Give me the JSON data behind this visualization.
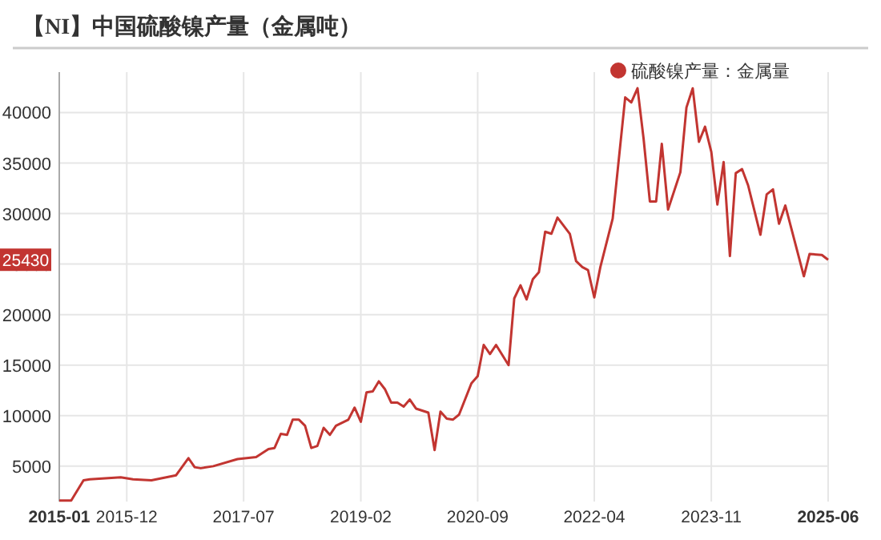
{
  "chart_data": {
    "type": "line",
    "title": "【NI】中国硫酸镍产量（金属吨）",
    "x": [
      "2015-01",
      "2015-03",
      "2015-05",
      "2015-06",
      "2015-11",
      "2016-01",
      "2016-04",
      "2016-08",
      "2016-10",
      "2016-11",
      "2016-12",
      "2017-02",
      "2017-06",
      "2017-09",
      "2017-11",
      "2017-12",
      "2018-01",
      "2018-02",
      "2018-03",
      "2018-04",
      "2018-05",
      "2018-06",
      "2018-07",
      "2018-08",
      "2018-09",
      "2018-10",
      "2018-12",
      "2019-01",
      "2019-02",
      "2019-03",
      "2019-04",
      "2019-05",
      "2019-06",
      "2019-07",
      "2019-08",
      "2019-09",
      "2019-10",
      "2019-11",
      "2020-01",
      "2020-02",
      "2020-03",
      "2020-04",
      "2020-05",
      "2020-06",
      "2020-08",
      "2020-09",
      "2020-10",
      "2020-11",
      "2020-12",
      "2021-02",
      "2021-03",
      "2021-04",
      "2021-05",
      "2021-06",
      "2021-07",
      "2021-08",
      "2021-09",
      "2021-10",
      "2021-12",
      "2022-01",
      "2022-02",
      "2022-03",
      "2022-04",
      "2022-05",
      "2022-07",
      "2022-09",
      "2022-10",
      "2022-11",
      "2022-12",
      "2023-01",
      "2023-02",
      "2023-03",
      "2023-04",
      "2023-06",
      "2023-07",
      "2023-08",
      "2023-09",
      "2023-10",
      "2023-11",
      "2023-12",
      "2024-01",
      "2024-02",
      "2024-03",
      "2024-04",
      "2024-05",
      "2024-07",
      "2024-08",
      "2024-09",
      "2024-10",
      "2024-11",
      "2025-02",
      "2025-03",
      "2025-05",
      "2025-06"
    ],
    "series": [
      {
        "name": "硫酸镍产量：金属量",
        "color": "#c23531",
        "values": [
          1600,
          1600,
          3600,
          3700,
          3900,
          3700,
          3600,
          4100,
          5800,
          4900,
          4800,
          5000,
          5700,
          5900,
          6700,
          6800,
          8200,
          8100,
          9600,
          9600,
          9000,
          6800,
          7000,
          8800,
          8100,
          9000,
          9600,
          10800,
          9400,
          12300,
          12400,
          13400,
          12600,
          11300,
          11300,
          10900,
          11600,
          10700,
          10300,
          6600,
          10400,
          9700,
          9600,
          10100,
          13200,
          13900,
          17000,
          16100,
          17000,
          15000,
          21600,
          22900,
          21500,
          23500,
          24200,
          28200,
          28000,
          29600,
          28000,
          25300,
          24700,
          24400,
          21700,
          24700,
          29500,
          41500,
          41000,
          42400,
          37400,
          31200,
          31200,
          36900,
          30400,
          34100,
          40500,
          42400,
          37100,
          38600,
          36100,
          30900,
          35100,
          25800,
          34000,
          34400,
          32800,
          27900,
          31900,
          32400,
          29000,
          30800,
          23800,
          26000,
          25900,
          25430
        ]
      }
    ],
    "xlim": [
      "2015-01",
      "2025-06"
    ],
    "xticks": [
      "2015-01",
      "2015-12",
      "2017-07",
      "2019-02",
      "2020-09",
      "2022-04",
      "2023-11",
      "2025-06"
    ],
    "ylim": [
      1500,
      44000
    ],
    "yticks": [
      5000,
      10000,
      15000,
      20000,
      25000,
      30000,
      35000,
      40000
    ],
    "annotations": [
      "25430"
    ],
    "grid": true,
    "legend": "top right",
    "marker": "none",
    "line_style": "solid"
  }
}
